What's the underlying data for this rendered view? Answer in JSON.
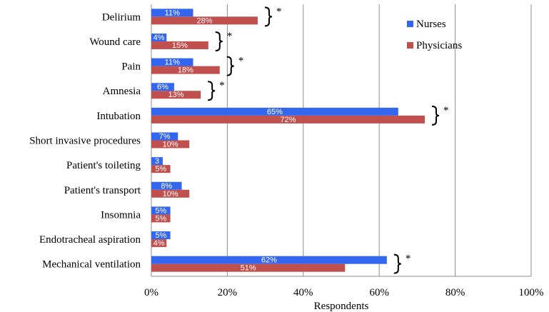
{
  "chart_data": {
    "type": "bar",
    "orientation": "horizontal",
    "title": "",
    "xlabel": "Respondents",
    "ylabel": "",
    "xlim": [
      0,
      100
    ],
    "x_ticks": [
      "0%",
      "20%",
      "40%",
      "60%",
      "80%",
      "100%"
    ],
    "grid": "vertical",
    "legend_position": "top-right",
    "categories": [
      "Delirium",
      "Wound care",
      "Pain",
      "Amnesia",
      "Intubation",
      "Short invasive procedures",
      "Patient's toileting",
      "Patient's transport",
      "Insomnia",
      "Endotracheal aspiration",
      "Mechanical ventilation"
    ],
    "series": [
      {
        "name": "Nurses",
        "color": "#3366ee",
        "values": [
          11,
          4,
          11,
          6,
          65,
          7,
          3,
          8,
          5,
          5,
          62
        ],
        "labels": [
          "11%",
          "4%",
          "11%",
          "6%",
          "65%",
          "7%",
          "3",
          "8%",
          "5%",
          "5%",
          "62%"
        ]
      },
      {
        "name": "Physicians",
        "color": "#c0504d",
        "values": [
          28,
          15,
          18,
          13,
          72,
          10,
          5,
          10,
          5,
          4,
          51
        ],
        "labels": [
          "28%",
          "15%",
          "18%",
          "13%",
          "72%",
          "10%",
          "5%",
          "10%",
          "5%",
          "4%",
          "51%"
        ]
      }
    ],
    "significance_marker": "*",
    "significant": [
      true,
      true,
      true,
      true,
      true,
      false,
      false,
      false,
      false,
      false,
      true
    ]
  }
}
